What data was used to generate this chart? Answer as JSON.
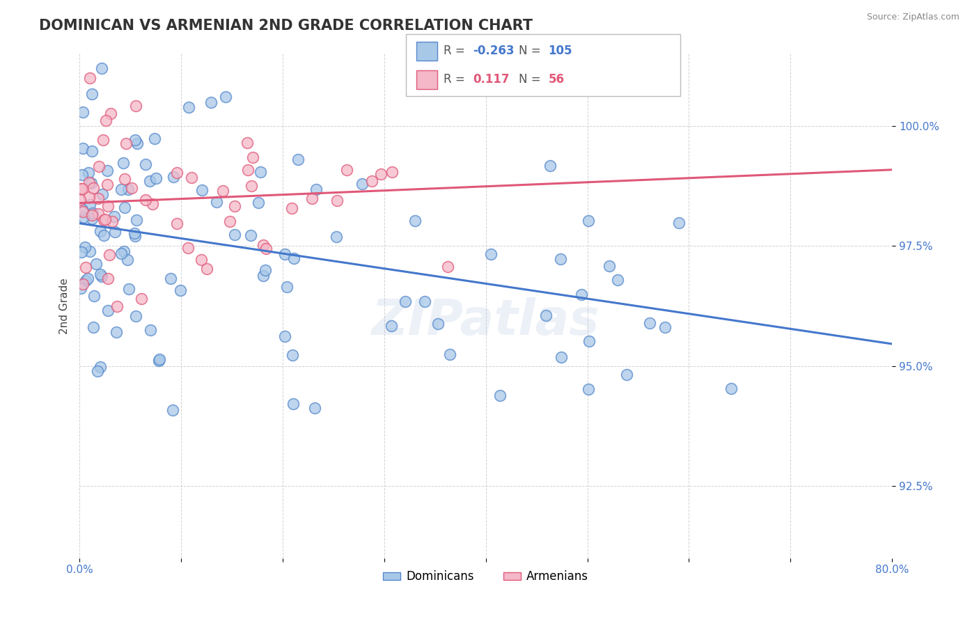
{
  "title": "DOMINICAN VS ARMENIAN 2ND GRADE CORRELATION CHART",
  "source_text": "Source: ZipAtlas.com",
  "xlabel": "",
  "ylabel": "2nd Grade",
  "xlim": [
    0.0,
    80.0
  ],
  "ylim": [
    91.0,
    101.5
  ],
  "xticks": [
    0.0,
    10.0,
    20.0,
    30.0,
    40.0,
    50.0,
    60.0,
    70.0,
    80.0
  ],
  "xticklabels": [
    "0.0%",
    "",
    "",
    "",
    "",
    "",
    "",
    "",
    "80.0%"
  ],
  "yticks": [
    92.5,
    95.0,
    97.5,
    100.0
  ],
  "yticklabels": [
    "92.5%",
    "95.0%",
    "97.5%",
    "100.0%"
  ],
  "blue_color": "#a8c8e8",
  "pink_color": "#f4b8c8",
  "blue_edge_color": "#5588cc",
  "pink_edge_color": "#e05878",
  "blue_line_color": "#4477cc",
  "pink_line_color": "#e05878",
  "R_blue": -0.263,
  "N_blue": 105,
  "R_pink": 0.117,
  "N_pink": 56,
  "legend_labels": [
    "Dominicans",
    "Armenians"
  ],
  "watermark": "ZIPatlas",
  "background_color": "#ffffff",
  "grid_color": "#cccccc",
  "tick_color": "#4477cc",
  "title_color": "#333333",
  "source_color": "#888888",
  "ylabel_color": "#444444"
}
